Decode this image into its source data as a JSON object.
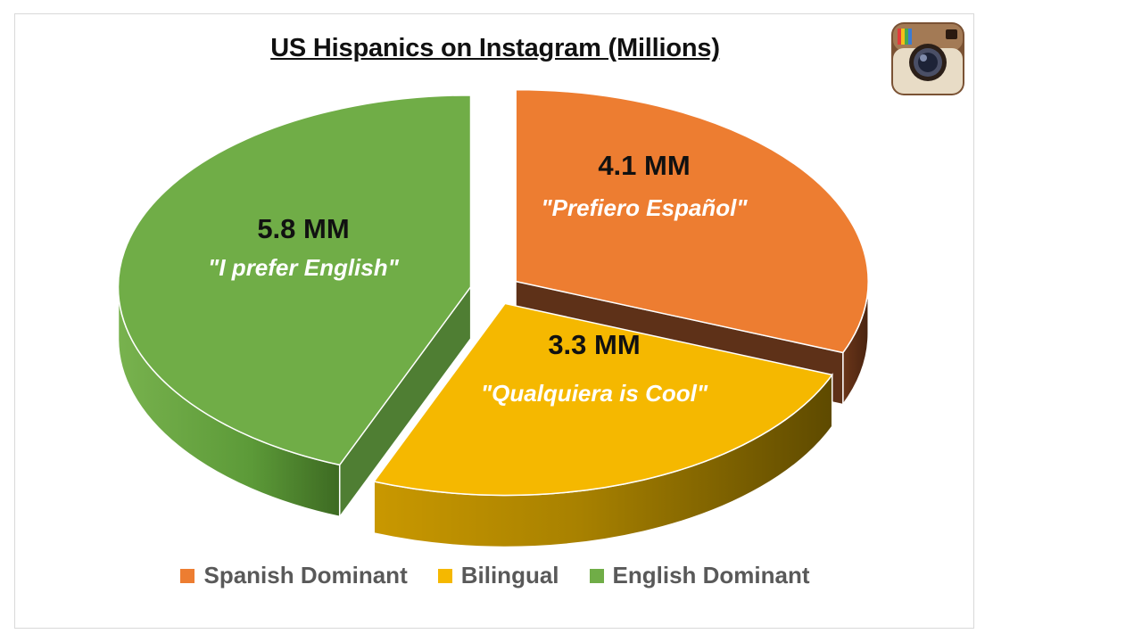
{
  "chart_data": {
    "type": "pie",
    "title": "US Hispanics on Instagram (Millions)",
    "slices": [
      {
        "name": "Spanish Dominant",
        "value": 4.1,
        "value_label": "4.1 MM",
        "quote": "\"Prefiero Español\"",
        "color": "#ED7D31",
        "side_color": "#5E3118",
        "text_color": "#111111",
        "quote_color": "#ffffff"
      },
      {
        "name": "Bilingual",
        "value": 3.3,
        "value_label": "3.3 MM",
        "quote": "\"Qualquiera  is Cool\"",
        "color": "#F5B800",
        "side_color": "#8A6A00",
        "text_color": "#111111",
        "quote_color": "#ffffff"
      },
      {
        "name": "English Dominant",
        "value": 5.8,
        "value_label": "5.8 MM",
        "quote": "\"I prefer English\"",
        "color": "#70AD47",
        "side_color": "#4F7E33",
        "text_color": "#111111",
        "quote_color": "#ffffff"
      }
    ],
    "legend_position": "bottom"
  },
  "icon": "instagram-icon"
}
